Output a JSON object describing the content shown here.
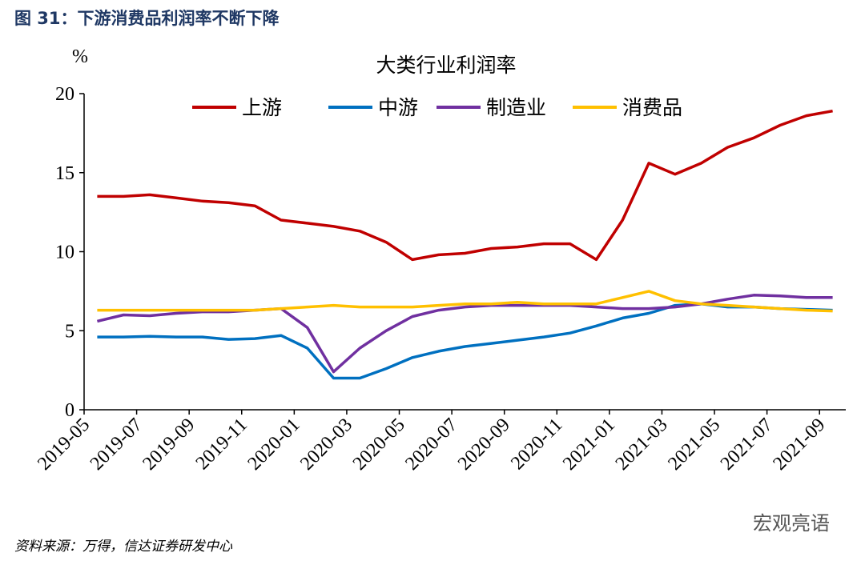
{
  "caption": "图 31：下游消费品利润率不断下降",
  "source": "资料来源：万得，信达证券研发中心",
  "watermark": "宏观亮语",
  "chart_data": {
    "type": "line",
    "title": "大类行业利润率",
    "ylabel": "%",
    "x": [
      "2019-05",
      "2019-06",
      "2019-07",
      "2019-08",
      "2019-09",
      "2019-10",
      "2019-11",
      "2019-12",
      "2020-01",
      "2020-02",
      "2020-03",
      "2020-04",
      "2020-05",
      "2020-06",
      "2020-07",
      "2020-08",
      "2020-09",
      "2020-10",
      "2020-11",
      "2020-12",
      "2021-01",
      "2021-02",
      "2021-03",
      "2021-04",
      "2021-05",
      "2021-06",
      "2021-07",
      "2021-08",
      "2021-09"
    ],
    "xticks": [
      "2019-05",
      "2019-07",
      "2019-09",
      "2019-11",
      "2020-01",
      "2020-03",
      "2020-05",
      "2020-07",
      "2020-09",
      "2020-11",
      "2021-01",
      "2021-03",
      "2021-05",
      "2021-07",
      "2021-09"
    ],
    "ylim": [
      0,
      20
    ],
    "yticks": [
      0,
      5,
      10,
      15,
      20
    ],
    "series": [
      {
        "name": "上游",
        "color": "#c00000",
        "values": [
          13.5,
          13.5,
          13.6,
          13.4,
          13.2,
          13.1,
          12.9,
          12.0,
          11.8,
          11.6,
          11.3,
          10.6,
          9.5,
          9.8,
          9.9,
          10.2,
          10.3,
          10.5,
          10.5,
          9.5,
          12.0,
          15.6,
          14.9,
          15.6,
          16.6,
          17.2,
          18.0,
          18.6,
          18.9
        ]
      },
      {
        "name": "中游",
        "color": "#0070c0",
        "values": [
          4.6,
          4.6,
          4.65,
          4.6,
          4.6,
          4.45,
          4.5,
          4.7,
          3.9,
          2.0,
          2.0,
          2.6,
          3.3,
          3.7,
          4.0,
          4.2,
          4.4,
          4.6,
          4.85,
          5.3,
          5.8,
          6.1,
          6.6,
          6.7,
          6.5,
          6.5,
          6.4,
          6.35,
          6.3
        ]
      },
      {
        "name": "制造业",
        "color": "#7030a0",
        "values": [
          5.6,
          6.0,
          5.95,
          6.1,
          6.2,
          6.2,
          6.3,
          6.4,
          5.2,
          2.4,
          3.9,
          5.0,
          5.9,
          6.3,
          6.5,
          6.6,
          6.6,
          6.6,
          6.6,
          6.5,
          6.4,
          6.4,
          6.5,
          6.7,
          7.0,
          7.25,
          7.2,
          7.1,
          7.1
        ]
      },
      {
        "name": "消费品",
        "color": "#ffc000",
        "values": [
          6.3,
          6.3,
          6.3,
          6.3,
          6.3,
          6.3,
          6.3,
          6.4,
          6.5,
          6.6,
          6.5,
          6.5,
          6.5,
          6.6,
          6.7,
          6.7,
          6.8,
          6.7,
          6.7,
          6.7,
          7.1,
          7.5,
          6.9,
          6.7,
          6.6,
          6.5,
          6.4,
          6.3,
          6.25
        ]
      }
    ]
  }
}
